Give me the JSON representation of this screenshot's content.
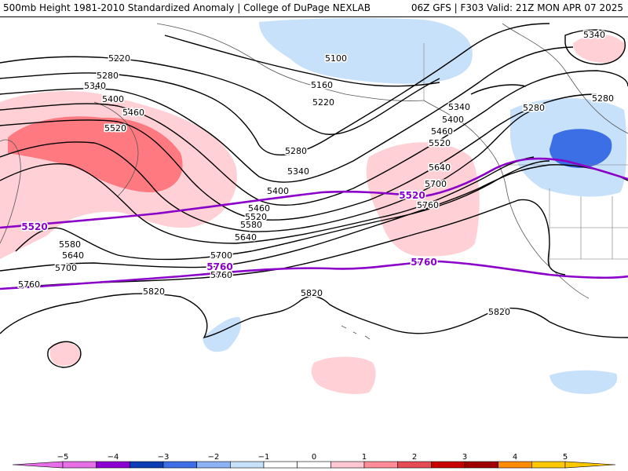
{
  "header": {
    "title": "500mb Height 1981-2010 Standardized Anomaly | College of DuPage NEXLAB",
    "run_info": "06Z GFS | F303 Valid: 21Z MON APR 07 2025"
  },
  "map": {
    "contour_color": "#000000",
    "highlight_color": "#8a00c8",
    "contour_labels": [
      "5100",
      "5160",
      "5220",
      "5220",
      "5280",
      "5280",
      "5280",
      "5280",
      "5340",
      "5340",
      "5340",
      "5340",
      "5400",
      "5400",
      "5400",
      "5460",
      "5460",
      "5460",
      "5520",
      "5520",
      "5520",
      "5580",
      "5580",
      "5640",
      "5640",
      "5640",
      "5700",
      "5700",
      "5700",
      "5760",
      "5760",
      "5760",
      "5820",
      "5820",
      "5820"
    ],
    "highlight_labels": [
      "5520",
      "5520",
      "5760",
      "5760"
    ]
  },
  "legend": {
    "ticks": [
      "−5",
      "−4",
      "−3",
      "−2",
      "−1",
      "0",
      "1",
      "2",
      "3",
      "4",
      "5"
    ],
    "colors": [
      "#e66ee6",
      "#8b00d2",
      "#0a3cb4",
      "#3c6ee6",
      "#8cb4f5",
      "#c8e1fa",
      "#ffffff",
      "#ffffff",
      "#ffc8d2",
      "#ff8c96",
      "#e64b55",
      "#c80000",
      "#a00000",
      "#ff8c00",
      "#ffc800"
    ]
  }
}
